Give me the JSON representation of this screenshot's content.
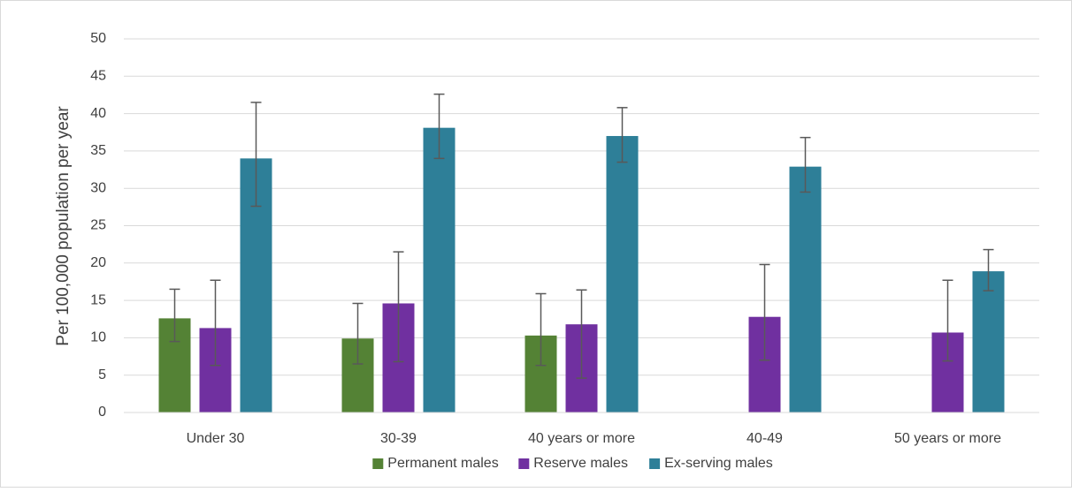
{
  "chart_data": {
    "type": "bar",
    "y_label": "Per 100,000 population per year",
    "categories": [
      "Under 30",
      "30-39",
      "40 years or more",
      "40-49",
      "50 years or more"
    ],
    "series": [
      {
        "name": "Permanent males",
        "color": "#548235",
        "values": [
          12.6,
          9.9,
          10.3,
          null,
          null
        ],
        "lower": [
          9.5,
          6.5,
          6.3,
          null,
          null
        ],
        "upper": [
          16.5,
          14.6,
          15.9,
          null,
          null
        ]
      },
      {
        "name": "Reserve males",
        "color": "#7030a0",
        "values": [
          11.3,
          14.6,
          11.8,
          12.8,
          10.7
        ],
        "lower": [
          6.3,
          6.8,
          4.6,
          7.0,
          6.9
        ],
        "upper": [
          17.7,
          21.5,
          16.4,
          19.8,
          17.7
        ]
      },
      {
        "name": "Ex-serving males",
        "color": "#2e7f98",
        "values": [
          34.0,
          38.1,
          37.0,
          32.9,
          18.9
        ],
        "lower": [
          27.6,
          34.0,
          33.5,
          29.5,
          16.3
        ],
        "upper": [
          41.5,
          42.6,
          40.8,
          36.8,
          21.8
        ]
      }
    ],
    "ylim": [
      0,
      50
    ],
    "yticks": [
      0,
      5,
      10,
      15,
      20,
      25,
      30,
      35,
      40,
      45,
      50
    ],
    "grid": true,
    "legend": "bottom"
  }
}
